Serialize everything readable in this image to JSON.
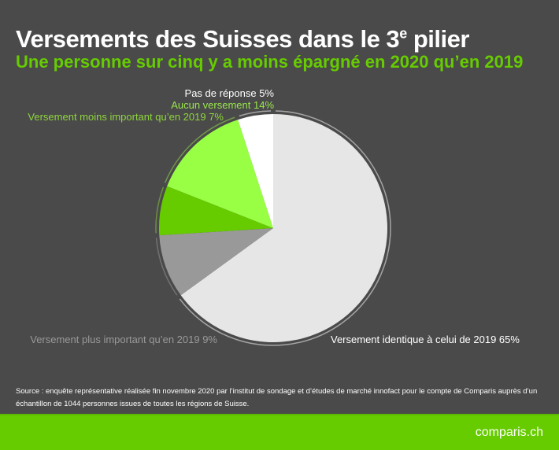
{
  "title_main": "Versements des Suisses dans le 3",
  "title_sup": "e",
  "title_end": " pilier",
  "subtitle": "Une personne sur cinq y a moins épargné en 2020 qu’en 2019",
  "source": "Source : enquête représentative réalisée fin novembre 2020 par l’institut de sondage et d’études de marché innofact pour le compte de Comparis auprès d’un échantillon de 1044 personnes issues de toutes les régions de Suisse.",
  "logo": "comparis.ch",
  "chart_data": {
    "type": "pie",
    "start": "top, clockwise",
    "slices": [
      {
        "label": "Versement identique à celui de 2019 65%",
        "value": 65,
        "color": "#e6e6e6",
        "label_color": "#ffffff"
      },
      {
        "label": "Versement plus important qu’en 2019 9%",
        "value": 9,
        "color": "#999999",
        "label_color": "#999999"
      },
      {
        "label": "Versement moins important qu’en 2019 7%",
        "value": 7,
        "color": "#66cc00",
        "label_color": "#8ed63c"
      },
      {
        "label": "Aucun versement 14%",
        "value": 14,
        "color": "#99ff44",
        "label_color": "#99e64d"
      },
      {
        "label": "Pas de réponse 5%",
        "value": 5,
        "color": "#ffffff",
        "label_color": "#ffffff"
      }
    ]
  }
}
